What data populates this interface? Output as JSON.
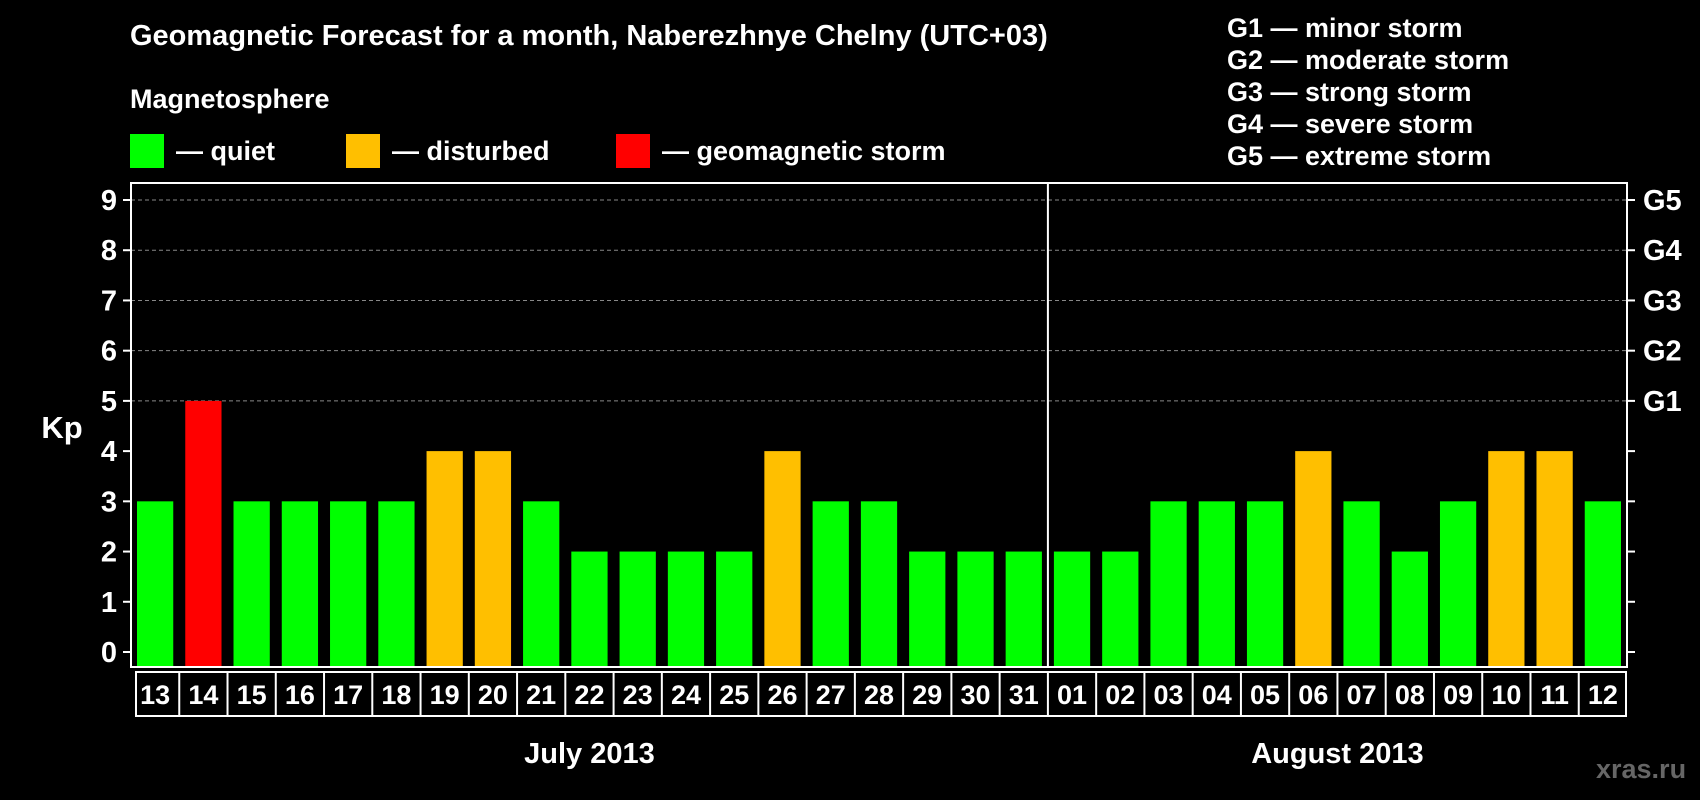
{
  "chart_data": {
    "type": "bar",
    "title": "Geomagnetic Forecast for a month, Naberezhnye Chelny (UTC+03)",
    "subtitle": "Magnetosphere",
    "ylabel": "Kp",
    "ylim": [
      0,
      9
    ],
    "yticks": [
      "0",
      "1",
      "2",
      "3",
      "4",
      "5",
      "6",
      "7",
      "8",
      "9"
    ],
    "grid": true,
    "right_axis_labels": [
      {
        "kp": 5,
        "label": "G1"
      },
      {
        "kp": 6,
        "label": "G2"
      },
      {
        "kp": 7,
        "label": "G3"
      },
      {
        "kp": 8,
        "label": "G4"
      },
      {
        "kp": 9,
        "label": "G5"
      }
    ],
    "categories": [
      "13",
      "14",
      "15",
      "16",
      "17",
      "18",
      "19",
      "20",
      "21",
      "22",
      "23",
      "24",
      "25",
      "26",
      "27",
      "28",
      "29",
      "30",
      "31",
      "01",
      "02",
      "03",
      "04",
      "05",
      "06",
      "07",
      "08",
      "09",
      "10",
      "11",
      "12"
    ],
    "values": [
      3,
      5,
      3,
      3,
      3,
      3,
      4,
      4,
      3,
      2,
      2,
      2,
      2,
      4,
      3,
      3,
      2,
      2,
      2,
      2,
      2,
      3,
      3,
      3,
      4,
      3,
      2,
      3,
      4,
      4,
      3
    ],
    "months": [
      {
        "label": "July 2013",
        "start_index": 0,
        "end_index": 18
      },
      {
        "label": "August 2013",
        "start_index": 19,
        "end_index": 30
      }
    ],
    "legend": [
      {
        "label": "— quiet",
        "color": "#00ff00"
      },
      {
        "label": "— disturbed",
        "color": "#ffbf00"
      },
      {
        "label": "— geomagnetic storm",
        "color": "#ff0000"
      }
    ],
    "color_rule": {
      "quiet_max": 3,
      "disturbed_max": 4,
      "quiet": "#00ff00",
      "disturbed": "#ffbf00",
      "storm": "#ff0000"
    }
  },
  "scale_legend": [
    "G1 — minor storm",
    "G2 — moderate storm",
    "G3 — strong storm",
    "G4 — severe storm",
    "G5 — extreme storm"
  ],
  "watermark": "xras.ru"
}
